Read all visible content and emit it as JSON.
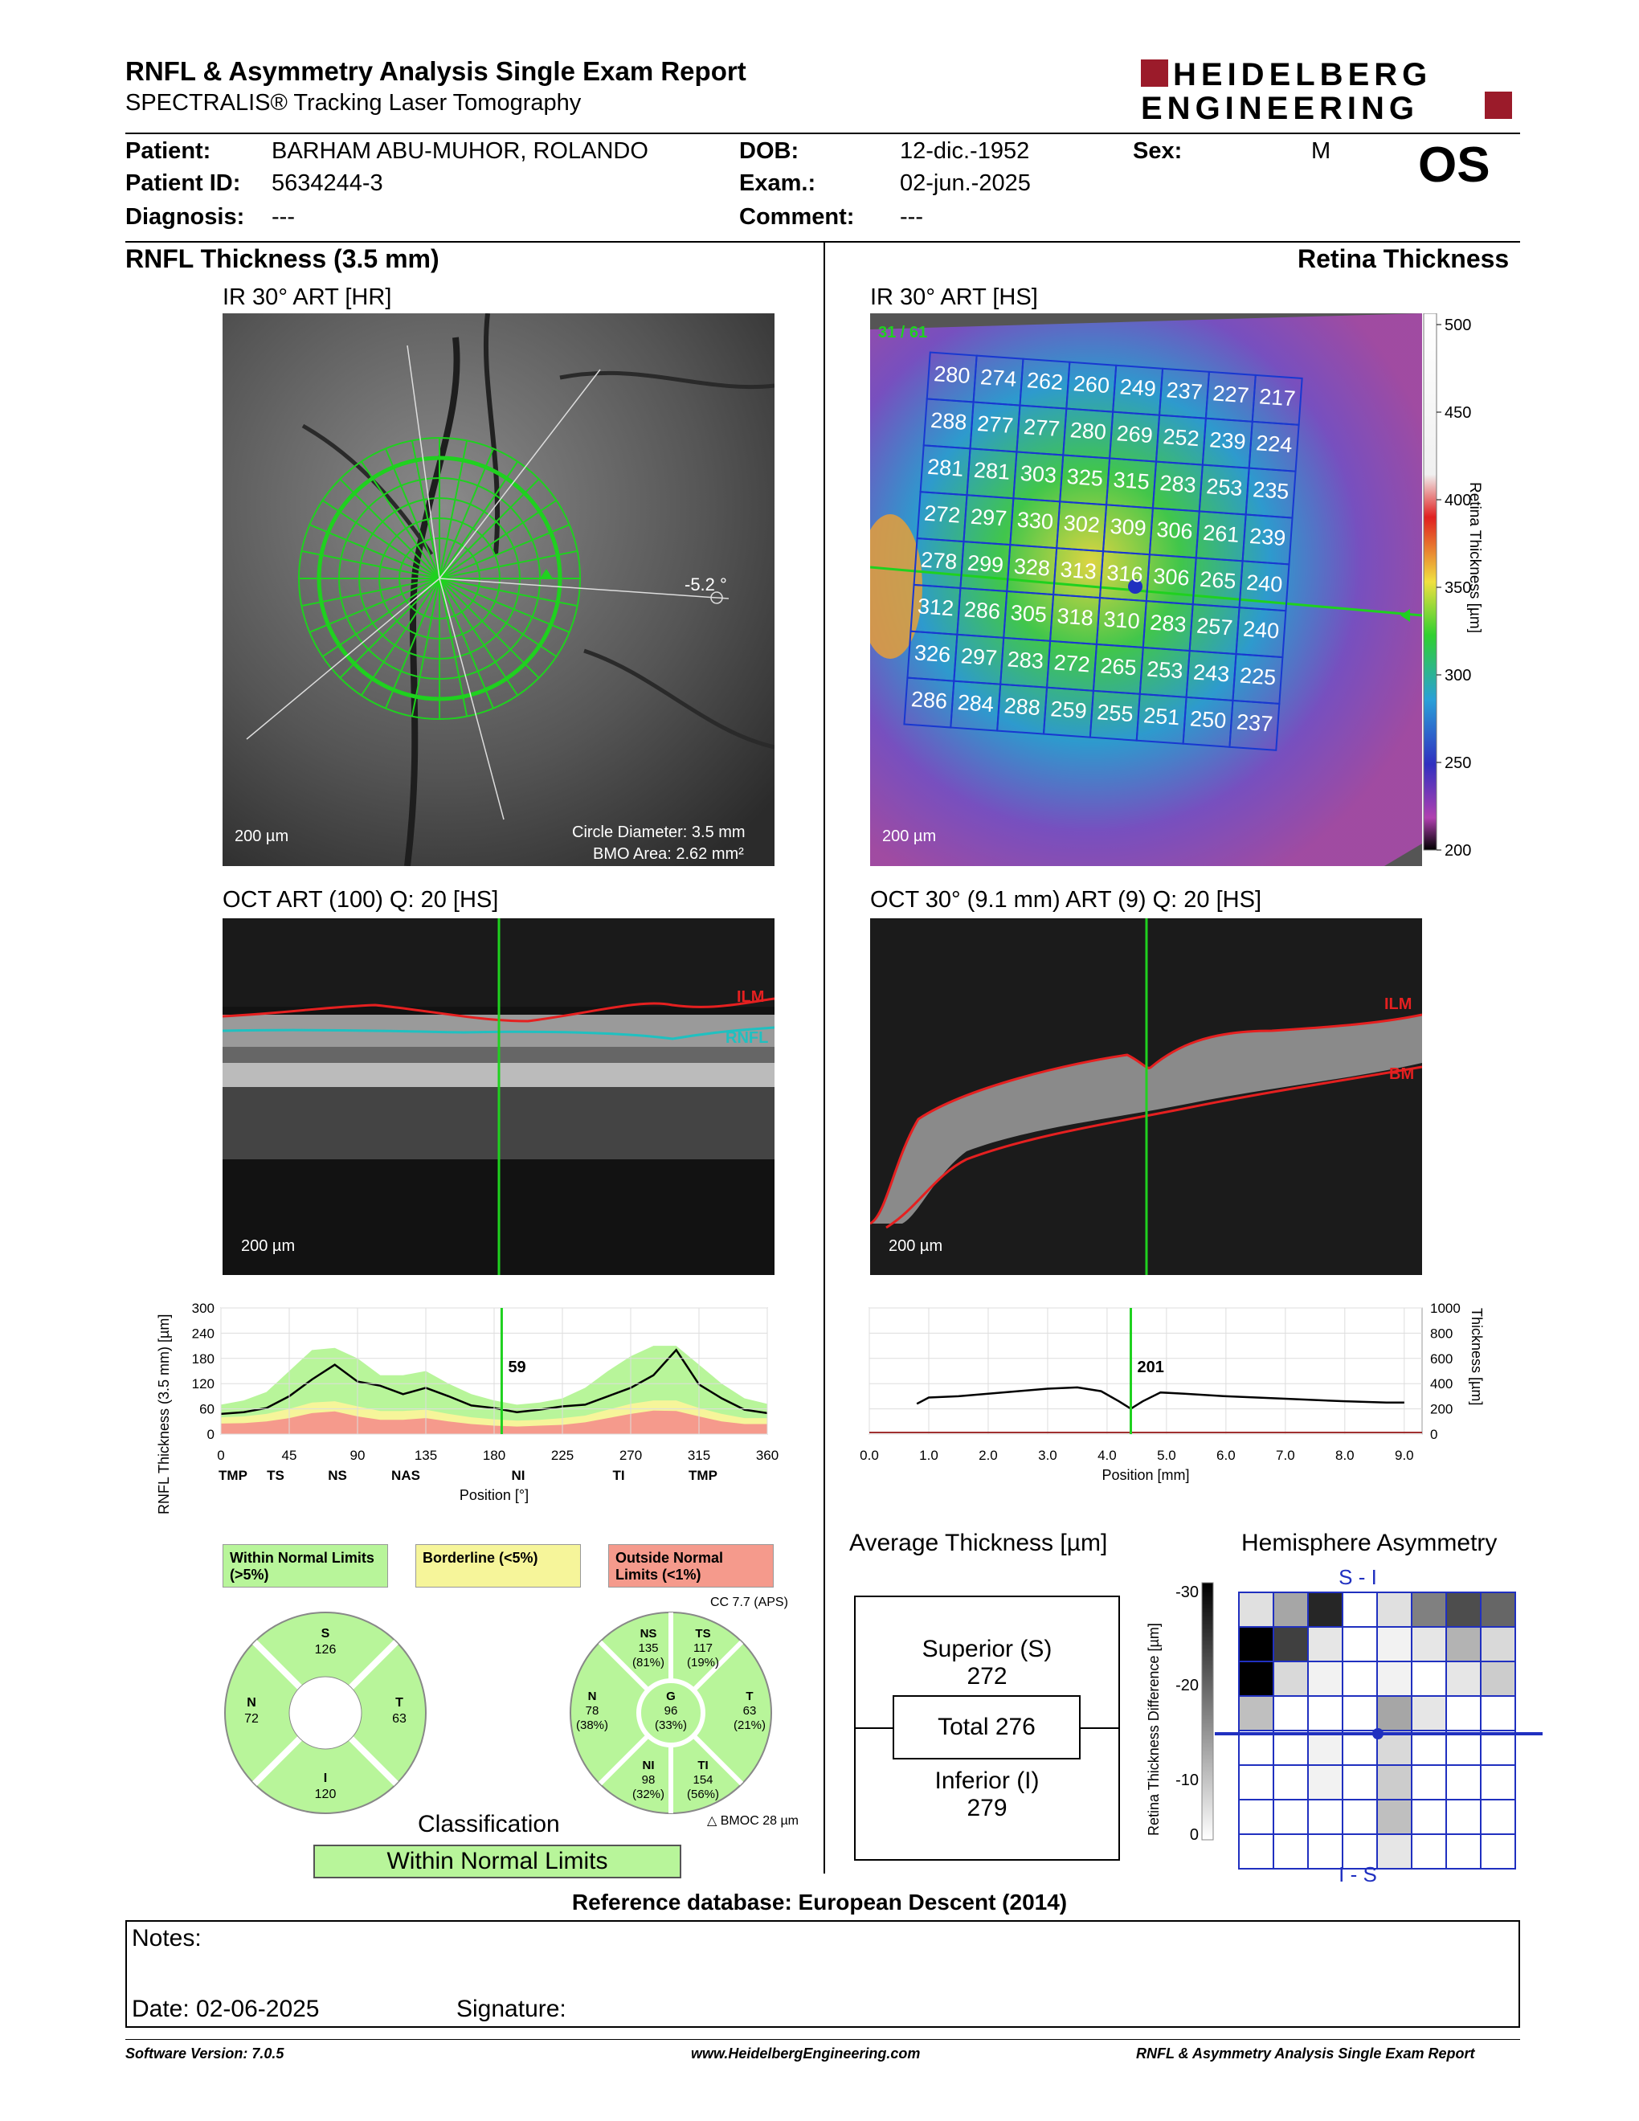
{
  "header": {
    "title": "RNFL & Asymmetry Analysis Single Exam Report",
    "subtitle": "SPECTRALIS® Tracking Laser Tomography",
    "logo_line1": "HEIDELBERG",
    "logo_line2": "ENGINEERING",
    "eye": "OS"
  },
  "patient": {
    "patient_label": "Patient:",
    "patient_value": "BARHAM ABU-MUHOR, ROLANDO",
    "id_label": "Patient ID:",
    "id_value": "5634244-3",
    "diag_label": "Diagnosis:",
    "diag_value": "---",
    "dob_label": "DOB:",
    "dob_value": "12-dic.-1952",
    "exam_label": "Exam.:",
    "exam_value": "02-jun.-2025",
    "comment_label": "Comment:",
    "comment_value": "---",
    "sex_label": "Sex:",
    "sex_value": "M"
  },
  "left": {
    "section_title": "RNFL Thickness (3.5 mm)",
    "ir_title": "IR 30° ART [HR]",
    "ir_angle": "-5.2 °",
    "ir_scale": "200 µm",
    "ir_circle": "Circle Diameter: 3.5 mm",
    "ir_bmo": "BMO Area: 2.62 mm²",
    "oct_title": "OCT ART (100) Q: 20 [HS]",
    "oct_scale": "200 µm",
    "oct_ilm": "ILM",
    "oct_rnfl": "RNFL"
  },
  "right": {
    "section_title": "Retina Thickness",
    "ir_title": "IR 30° ART [HS]",
    "ir_slice": "31 / 61",
    "ir_scale": "200 µm",
    "colorbar_label": "Retina Thickness [µm]",
    "colorbar_ticks": [
      "500",
      "450",
      "400",
      "350",
      "300",
      "250",
      "200"
    ],
    "grid": [
      [
        "280",
        "274",
        "262",
        "260",
        "249",
        "237",
        "227",
        "217"
      ],
      [
        "288",
        "277",
        "277",
        "280",
        "269",
        "252",
        "239",
        "224"
      ],
      [
        "281",
        "281",
        "303",
        "325",
        "315",
        "283",
        "253",
        "235"
      ],
      [
        "272",
        "297",
        "330",
        "302",
        "309",
        "306",
        "261",
        "239"
      ],
      [
        "278",
        "299",
        "328",
        "313",
        "316",
        "306",
        "265",
        "240"
      ],
      [
        "312",
        "286",
        "305",
        "318",
        "310",
        "283",
        "257",
        "240"
      ],
      [
        "326",
        "297",
        "283",
        "272",
        "265",
        "253",
        "243",
        "225"
      ],
      [
        "286",
        "284",
        "288",
        "259",
        "255",
        "251",
        "250",
        "237"
      ]
    ],
    "oct_title": "OCT 30° (9.1 mm) ART (9) Q: 20 [HS]",
    "oct_scale": "200 µm",
    "oct_ilm": "ILM",
    "oct_bm": "BM"
  },
  "rnfl_chart": {
    "type": "area",
    "ylabel": "RNFL Thickness (3.5 mm) [µm]",
    "xlabel": "Position [°]",
    "yticks": [
      "300",
      "240",
      "180",
      "120",
      "60",
      "0"
    ],
    "xticks": [
      "0",
      "45",
      "90",
      "135",
      "180",
      "225",
      "270",
      "315",
      "360"
    ],
    "sectors": [
      "TMP",
      "TS",
      "NS",
      "NAS",
      "NI",
      "TI",
      "TMP"
    ],
    "cursor_value": "59",
    "cursor_x": 185,
    "x": [
      0,
      15,
      30,
      45,
      60,
      75,
      90,
      105,
      120,
      135,
      150,
      165,
      180,
      195,
      210,
      225,
      240,
      255,
      270,
      285,
      300,
      315,
      330,
      345,
      360
    ],
    "measured": [
      48,
      52,
      62,
      90,
      130,
      165,
      125,
      115,
      95,
      110,
      90,
      68,
      62,
      52,
      58,
      66,
      70,
      90,
      110,
      140,
      200,
      118,
      85,
      58,
      50
    ],
    "normal_upper": [
      70,
      80,
      100,
      150,
      200,
      205,
      180,
      140,
      140,
      150,
      120,
      95,
      80,
      70,
      75,
      85,
      110,
      150,
      185,
      210,
      210,
      165,
      120,
      85,
      72
    ],
    "normal_lower": [
      40,
      42,
      48,
      60,
      75,
      78,
      66,
      55,
      55,
      58,
      48,
      40,
      35,
      32,
      34,
      38,
      44,
      58,
      72,
      80,
      80,
      62,
      48,
      38,
      38
    ],
    "borderline_lower": [
      30,
      30,
      34,
      44,
      56,
      58,
      48,
      40,
      40,
      42,
      34,
      28,
      25,
      22,
      24,
      27,
      32,
      44,
      54,
      60,
      60,
      46,
      34,
      28,
      28
    ],
    "outside_upper": [
      25,
      26,
      30,
      38,
      50,
      54,
      42,
      34,
      34,
      38,
      30,
      24,
      20,
      18,
      20,
      22,
      28,
      38,
      48,
      56,
      55,
      42,
      30,
      24,
      24
    ]
  },
  "retina_chart": {
    "type": "line",
    "xlabel": "Position [mm]",
    "ylabel": "Thickness [µm]",
    "xticks": [
      "0.0",
      "1.0",
      "2.0",
      "3.0",
      "4.0",
      "5.0",
      "6.0",
      "7.0",
      "8.0",
      "9.0"
    ],
    "yticks": [
      "1000",
      "800",
      "600",
      "400",
      "200",
      "0"
    ],
    "cursor_value": "201",
    "cursor_x": 4.4,
    "x": [
      0.8,
      1.0,
      1.5,
      2.0,
      2.5,
      3.0,
      3.5,
      3.9,
      4.2,
      4.4,
      4.6,
      4.9,
      5.3,
      6.0,
      7.0,
      8.0,
      8.7,
      9.0
    ],
    "y": [
      240,
      290,
      300,
      320,
      340,
      360,
      370,
      340,
      260,
      201,
      260,
      330,
      320,
      300,
      280,
      260,
      250,
      250
    ]
  },
  "legend": {
    "within": "Within Normal Limits (>5%)",
    "borderline": "Borderline (<5%)",
    "outside": "Outside Normal Limits (<1%)",
    "cc": "CC 7.7 (APS)",
    "bmo": "BMOC 28 µm"
  },
  "quadrant": {
    "S": "S",
    "S_val": "126",
    "N": "N",
    "N_val": "72",
    "T": "T",
    "T_val": "63",
    "I": "I",
    "I_val": "120"
  },
  "sector": {
    "NS": "NS",
    "NS_val": "135",
    "NS_pct": "(81%)",
    "TS": "TS",
    "TS_val": "117",
    "TS_pct": "(19%)",
    "N": "N",
    "N_val": "78",
    "N_pct": "(38%)",
    "G": "G",
    "G_val": "96",
    "G_pct": "(33%)",
    "T": "T",
    "T_val": "63",
    "T_pct": "(21%)",
    "NI": "NI",
    "NI_val": "98",
    "NI_pct": "(32%)",
    "TI": "TI",
    "TI_val": "154",
    "TI_pct": "(56%)"
  },
  "classification": {
    "label": "Classification",
    "value": "Within Normal Limits"
  },
  "average": {
    "title": "Average Thickness [µm]",
    "superior_label": "Superior (S)",
    "superior_val": "272",
    "total": "Total 276",
    "inferior_label": "Inferior (I)",
    "inferior_val": "279"
  },
  "asymmetry": {
    "title": "Hemisphere Asymmetry",
    "top_label": "S - I",
    "bottom_label": "I - S",
    "scale_label": "Retina Thickness Difference [µm]",
    "scale_ticks": [
      "-30",
      "-20",
      "-10",
      "0"
    ],
    "cells": [
      [
        0.12,
        0.35,
        0.85,
        0,
        0.12,
        0.5,
        0.7,
        0.6
      ],
      [
        1,
        0.75,
        0.1,
        0,
        0.05,
        0.1,
        0.3,
        0.15
      ],
      [
        1,
        0.15,
        0.05,
        0,
        0.05,
        0,
        0.1,
        0.2
      ],
      [
        0.25,
        0,
        0,
        0,
        0.35,
        0.1,
        0,
        0
      ],
      [
        0,
        0,
        0.05,
        0,
        0.15,
        0,
        0,
        0
      ],
      [
        0,
        0,
        0.05,
        0,
        0.2,
        0,
        0,
        0
      ],
      [
        0,
        0,
        0,
        0,
        0.25,
        0,
        0,
        0
      ],
      [
        0,
        0,
        0,
        0,
        0.1,
        0,
        0,
        0
      ]
    ]
  },
  "reference": "Reference database: European Descent (2014)",
  "notes": {
    "label": "Notes:",
    "date": "Date: 02-06-2025",
    "signature": "Signature:"
  },
  "footer": {
    "version": "Software Version: 7.0.5",
    "url": "www.HeidelbergEngineering.com",
    "report": "RNFL & Asymmetry Analysis Single Exam Report"
  }
}
